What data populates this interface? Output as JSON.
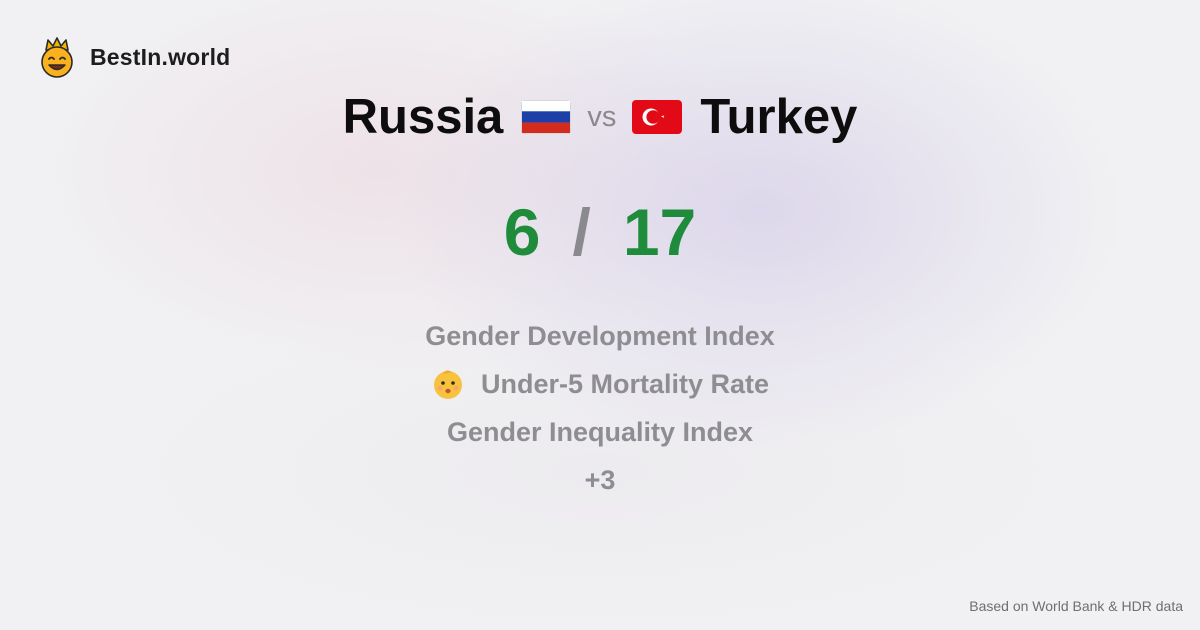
{
  "brand": {
    "name": "BestIn.world",
    "logo_icon": "crowned-smiley-icon"
  },
  "comparison": {
    "left_country": "Russia",
    "left_flag_icon": "russia-flag-icon",
    "vs_text": "vs",
    "right_country": "Turkey",
    "right_flag_icon": "turkey-flag-icon"
  },
  "score": {
    "left": "6",
    "separator": "/",
    "right": "17",
    "color": "#1f8c3b"
  },
  "metrics": [
    {
      "label": "Gender Development Index"
    },
    {
      "label": "Under-5 Mortality Rate",
      "icon": "baby-face-icon"
    },
    {
      "label": "Gender Inequality Index"
    }
  ],
  "more": "+3",
  "footer": {
    "source": "Based on World Bank & HDR data"
  }
}
